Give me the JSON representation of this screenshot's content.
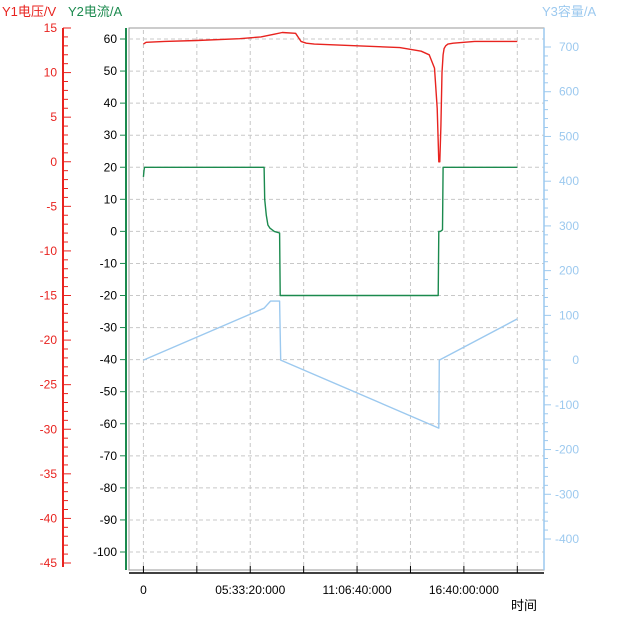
{
  "chart_data": {
    "type": "line",
    "axis_titles": {
      "y1": "Y1电压/V",
      "y2": "Y2电流/A",
      "y3": "Y3容量/A",
      "x": "时间"
    },
    "axes": {
      "y1": {
        "range": [
          -45,
          15
        ],
        "major_step": 5,
        "minor_step": 1,
        "ticks": [
          "15",
          "10",
          "5",
          "0",
          "-5",
          "-10",
          "-15",
          "-20",
          "-25",
          "-30",
          "-35",
          "-40",
          "-45"
        ],
        "color": "#e8231f"
      },
      "y2": {
        "range": [
          -105,
          65
        ],
        "major_step": 10,
        "ticks": [
          "60",
          "50",
          "40",
          "30",
          "20",
          "10",
          "0",
          "-10",
          "-20",
          "-30",
          "-40",
          "-50",
          "-60",
          "-70",
          "-80",
          "-90",
          "-100"
        ],
        "color": "#1b8a4e"
      },
      "y3": {
        "range": [
          -450,
          730
        ],
        "major_step": 100,
        "minor_step": 20,
        "ticks": [
          "700",
          "600",
          "500",
          "400",
          "300",
          "200",
          "100",
          "0",
          "-100",
          "-200",
          "-300",
          "-400"
        ],
        "color": "#9cc9ef"
      },
      "x": {
        "range_seconds": [
          -2700,
          75000
        ],
        "ticks": [
          {
            "seconds": 0,
            "label": "0"
          },
          {
            "seconds": 20000,
            "label": "05:33:20:000"
          },
          {
            "seconds": 40000,
            "label": "11:06:40:000"
          },
          {
            "seconds": 60000,
            "label": "16:40:00:000"
          }
        ],
        "minor_every_seconds": 10000
      }
    },
    "grid": true,
    "series": [
      {
        "axis": "y1",
        "color": "#e8231f",
        "x": [
          0,
          500,
          4000,
          10000,
          18000,
          22000,
          24500,
          26000,
          28500,
          29500,
          30500,
          32000,
          40000,
          48000,
          52000,
          53500,
          54500,
          55000,
          55300,
          55500,
          55700,
          55900,
          56100,
          56300,
          56600,
          57000,
          58000,
          60000,
          62000,
          66000,
          70000
        ],
        "y": [
          13.2,
          13.4,
          13.5,
          13.6,
          13.8,
          14.0,
          14.3,
          14.5,
          14.4,
          13.5,
          13.3,
          13.2,
          13.0,
          12.8,
          12.4,
          12.0,
          10.5,
          6.0,
          0.0,
          0.0,
          4.0,
          10.0,
          12.0,
          12.7,
          13.0,
          13.2,
          13.3,
          13.4,
          13.5,
          13.5,
          13.5
        ]
      },
      {
        "axis": "y2",
        "color": "#1b8a4e",
        "x": [
          0,
          100,
          200,
          22600,
          22700,
          23000,
          23300,
          23700,
          24500,
          25500,
          25600,
          25700,
          55200,
          55300,
          55600,
          56000,
          56100,
          56200,
          70000
        ],
        "y": [
          17,
          19,
          20,
          20,
          10,
          5,
          2,
          1,
          0,
          -0.5,
          -20,
          -20,
          -20,
          0,
          0,
          0.5,
          20,
          20,
          20
        ]
      },
      {
        "axis": "y3",
        "color": "#9cc9ef",
        "x": [
          0,
          22600,
          23800,
          25500,
          25700,
          55300,
          55400,
          70000
        ],
        "y": [
          0,
          116,
          132,
          132,
          0,
          -152,
          0,
          92
        ]
      }
    ]
  }
}
